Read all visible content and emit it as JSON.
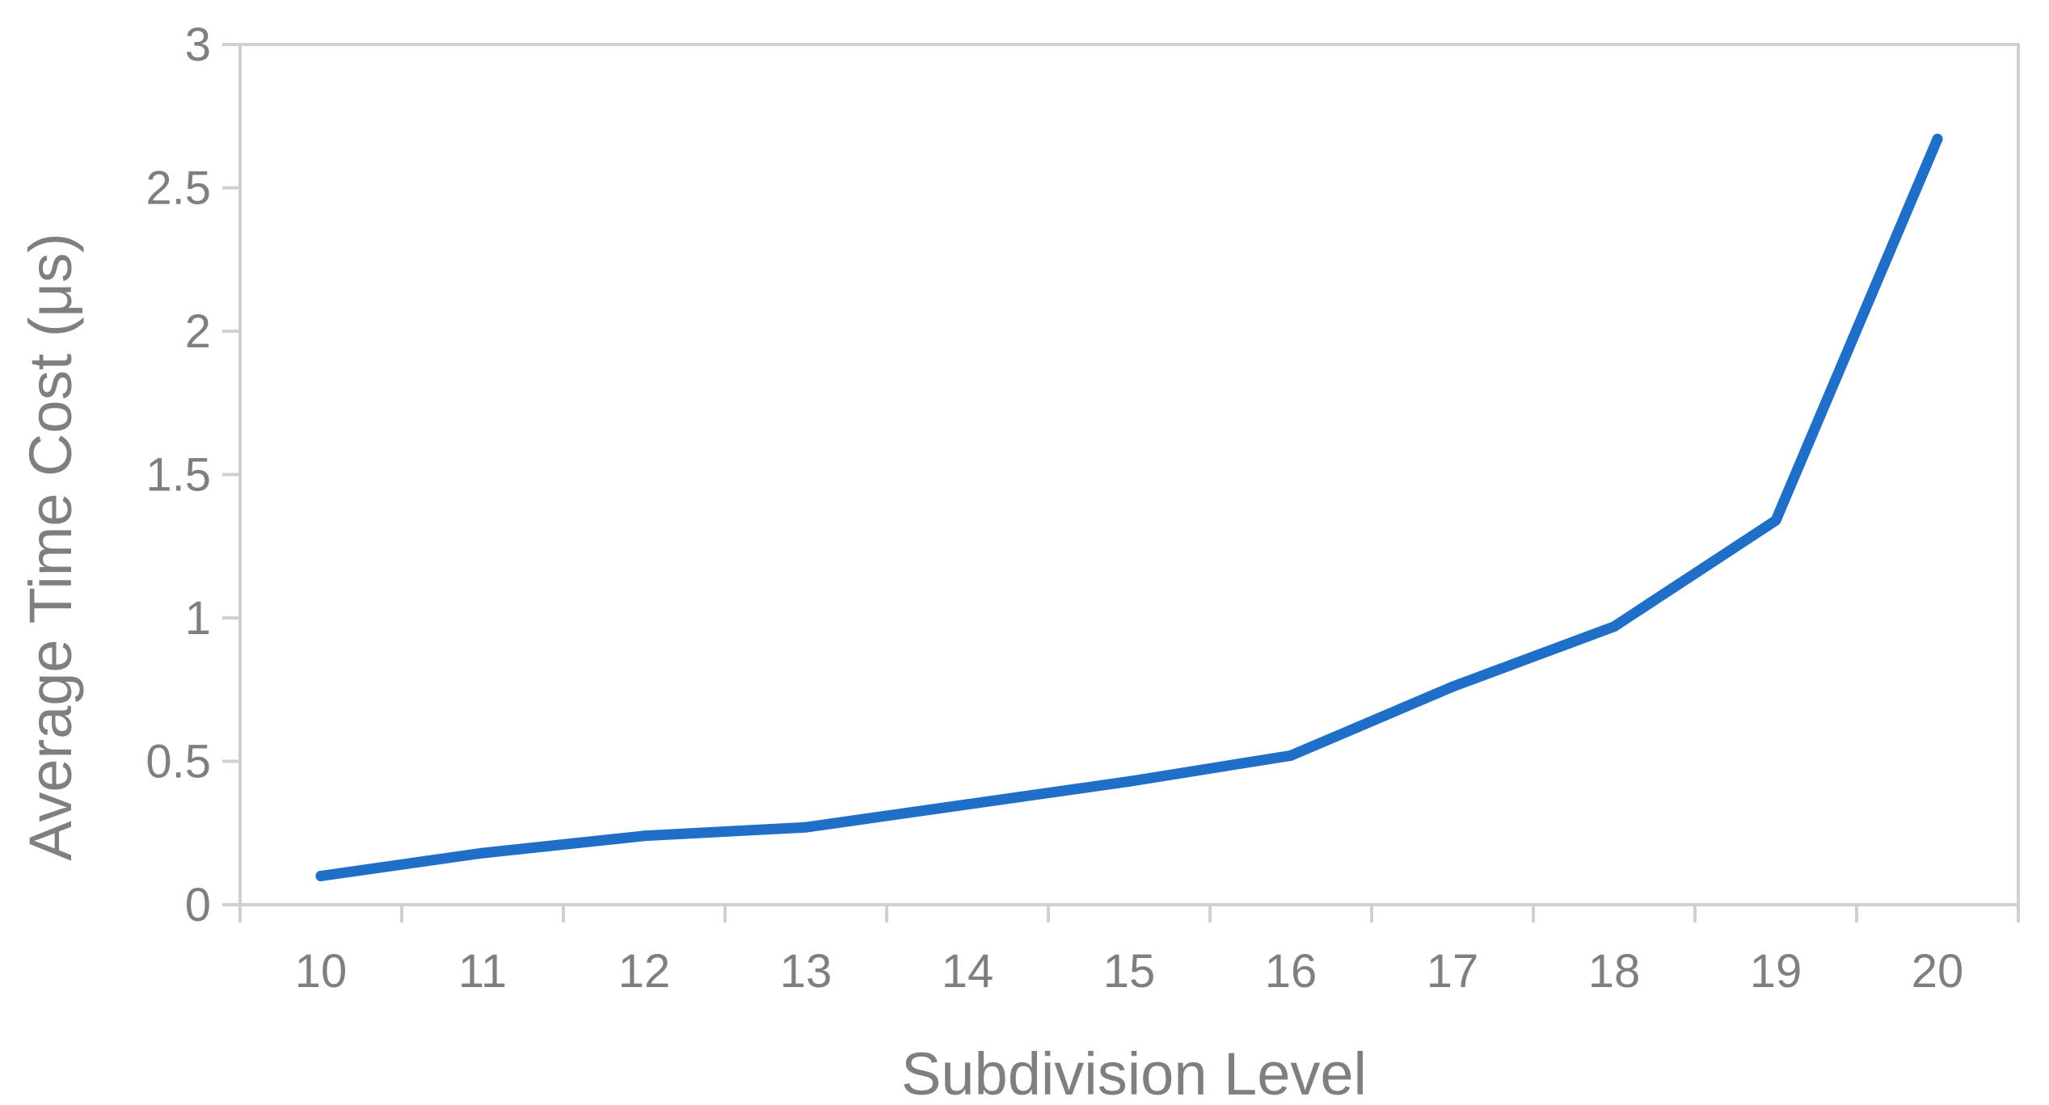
{
  "chart_data": {
    "type": "line",
    "title": "",
    "xlabel": "Subdivision Level",
    "ylabel": "Average Time Cost (μs)",
    "categories": [
      "10",
      "11",
      "12",
      "13",
      "14",
      "15",
      "16",
      "17",
      "18",
      "19",
      "20"
    ],
    "yticks": [
      "0",
      "0.5",
      "1",
      "1.5",
      "2",
      "2.5",
      "3"
    ],
    "ylim": [
      0,
      3
    ],
    "grid": false,
    "legend": "none",
    "series": [
      {
        "color": "#1f6fc8",
        "values": [
          0.1,
          0.18,
          0.24,
          0.27,
          0.35,
          0.43,
          0.52,
          0.76,
          0.97,
          1.34,
          2.67
        ]
      }
    ]
  }
}
